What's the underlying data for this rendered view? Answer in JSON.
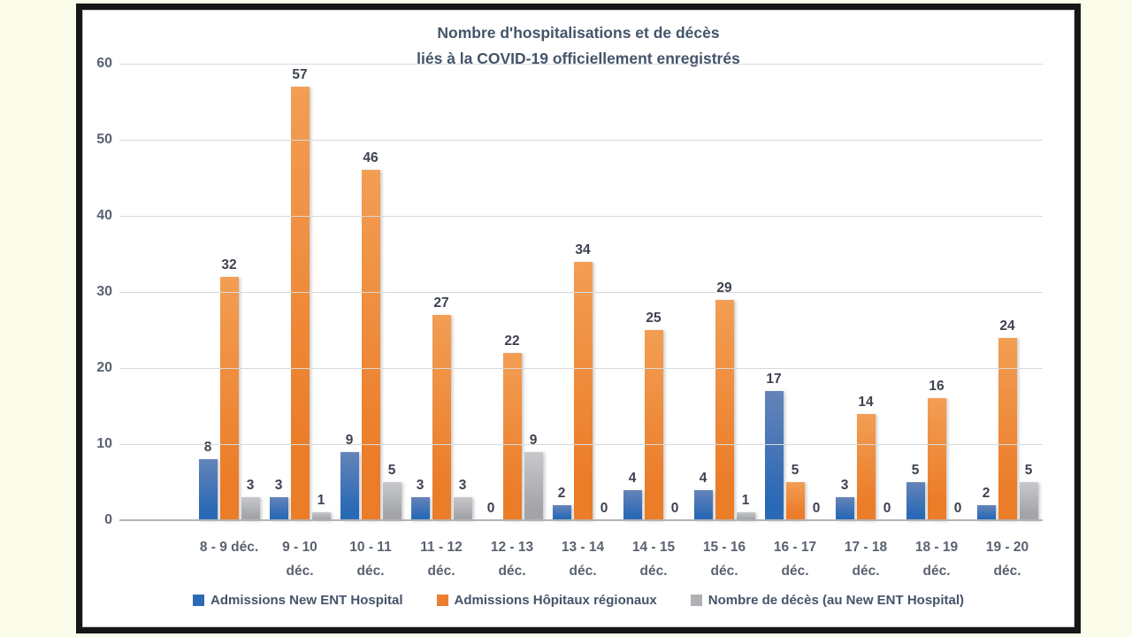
{
  "background_color": "#FBFBE9",
  "frame_color": "#161616",
  "chart_data": {
    "type": "bar",
    "title": "Nombre d'hospitalisations et de décès\nliés à la COVID-19 officiellement enregistrés",
    "title_color": "#44546A",
    "categories": [
      "8 - 9 déc.",
      "9 - 10\ndéc.",
      "10 - 11\ndéc.",
      "11 - 12\ndéc.",
      "12 - 13\ndéc.",
      "13 - 14\ndéc.",
      "14 - 15\ndéc.",
      "15 - 16\ndéc.",
      "16 - 17\ndéc.",
      "17 - 18\ndéc.",
      "18 - 19\ndéc.",
      "19 - 20\ndéc."
    ],
    "series": [
      {
        "name": "Admissions New ENT Hospital",
        "color": "#2E6BB5",
        "color_top": "#6584B8",
        "color_bottom": "#2A69B6",
        "values": [
          8,
          3,
          9,
          3,
          0,
          2,
          4,
          4,
          17,
          3,
          5,
          2
        ]
      },
      {
        "name": "Admissions Hôpitaux régionaux",
        "color": "#ED7D31",
        "color_top": "#F29E54",
        "color_bottom": "#EB7C28",
        "values": [
          32,
          57,
          46,
          27,
          22,
          34,
          25,
          29,
          5,
          14,
          16,
          24
        ]
      },
      {
        "name": "Nombre de décès (au New ENT Hospital)",
        "color": "#AFB1B4",
        "color_top": "#C6C8CB",
        "color_bottom": "#A2A4A8",
        "values": [
          3,
          1,
          5,
          3,
          9,
          0,
          0,
          1,
          0,
          0,
          0,
          5
        ]
      }
    ],
    "y_ticks": [
      0,
      10,
      20,
      30,
      40,
      50,
      60
    ],
    "ylim": [
      0,
      60
    ],
    "grid": true,
    "gridline_color": "#d9d9d9",
    "legend_position": "bottom",
    "data_labels": true,
    "data_label_color": "#3d4250",
    "axis_label_color": "#5a6270"
  }
}
